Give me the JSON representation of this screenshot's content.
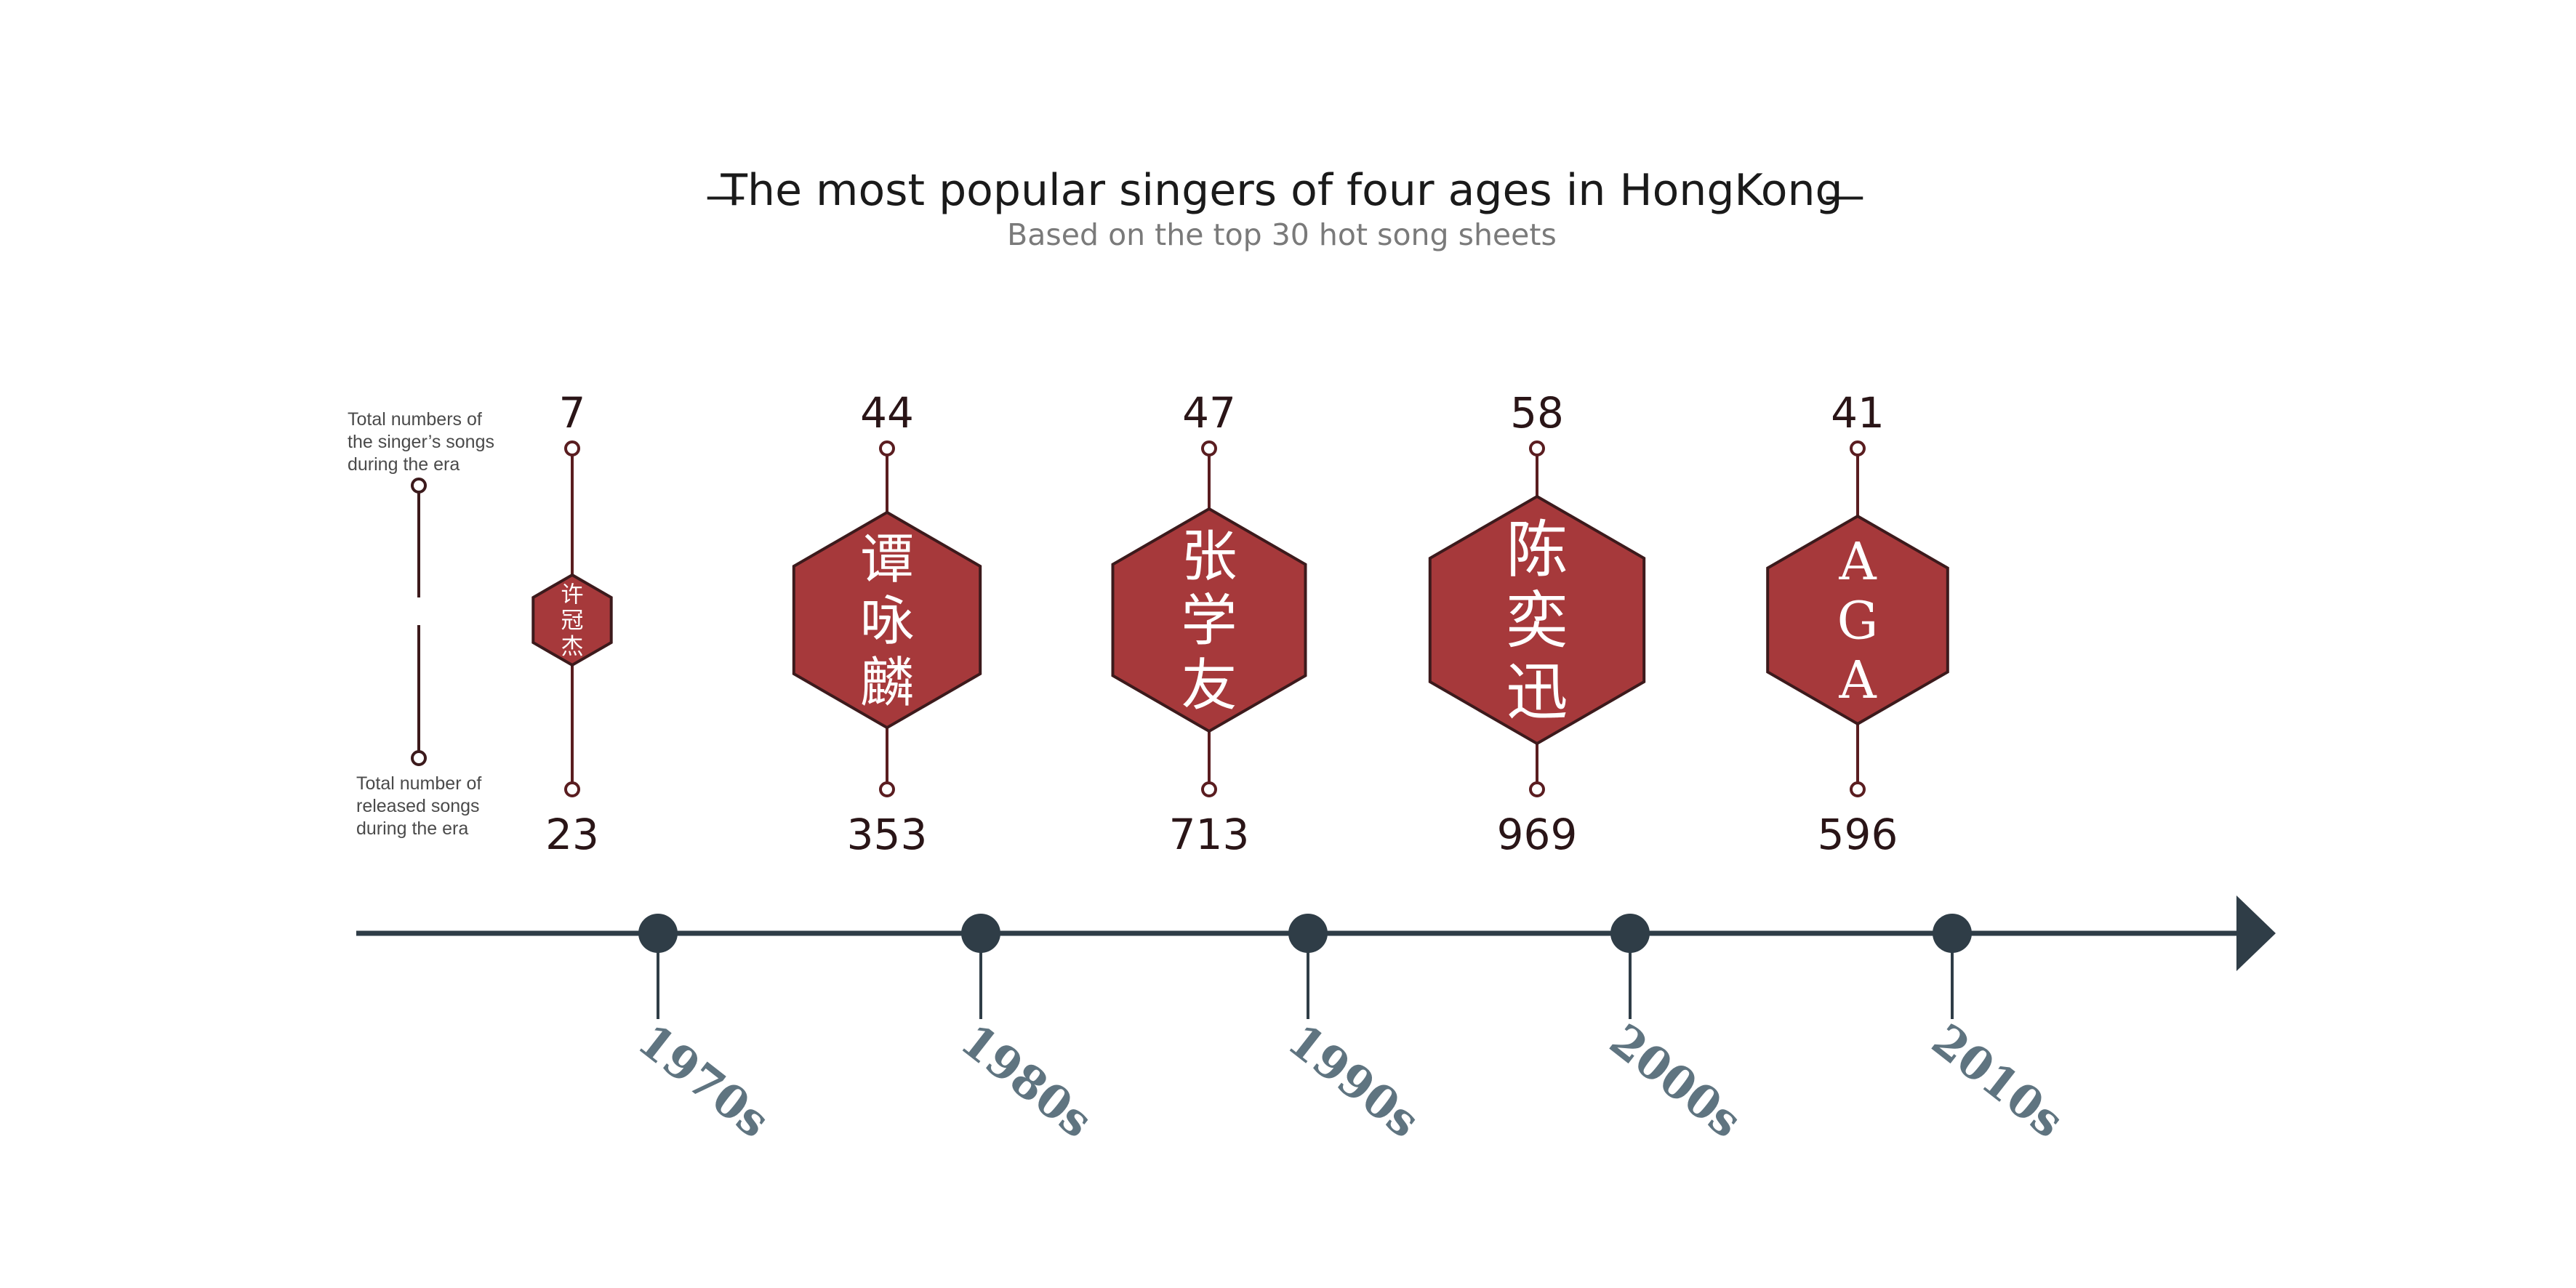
{
  "colors": {
    "accent": "#a6393b",
    "hex_stroke": "#3c1a1c",
    "stem": "#5a1d20",
    "axis": "#2f3d47",
    "decade_text": "#5f7480",
    "number_text": "#2a1517",
    "legend_text": "#4a4a4a",
    "title_text": "#1a1a1a",
    "subtitle_text": "#7a7a7a"
  },
  "header": {
    "title": "The most popular singers of four ages in HongKong",
    "dash_left": "—",
    "dash_right": "—",
    "subtitle": "Based on the top 30 hot song sheets"
  },
  "legend": {
    "top_lines": [
      "Total numbers of",
      "the singer’s songs",
      "during the era"
    ],
    "bottom_lines": [
      "Total number of",
      "released songs",
      "during the era"
    ]
  },
  "chart_data": {
    "type": "timeline",
    "title": "The most popular singers of four ages in HongKong",
    "subtitle": "Based on the top 30 hot song sheets",
    "series": [
      {
        "name": "Total numbers of the singer’s songs during the era",
        "values": [
          7,
          44,
          47,
          58,
          41
        ]
      },
      {
        "name": "Total number of released songs during the era",
        "values": [
          23,
          353,
          713,
          969,
          596
        ]
      }
    ],
    "categories": [
      "1970s",
      "1980s",
      "1990s",
      "2000s",
      "2010s"
    ],
    "points": [
      {
        "decade": "1970s",
        "singer": "许冠杰",
        "singer_chars": [
          "许",
          "冠",
          "杰"
        ],
        "singer_songs": 7,
        "total_released": 23
      },
      {
        "decade": "1980s",
        "singer": "谭咏麟",
        "singer_chars": [
          "谭",
          "咏",
          "麟"
        ],
        "singer_songs": 44,
        "total_released": 353
      },
      {
        "decade": "1990s",
        "singer": "张学友",
        "singer_chars": [
          "张",
          "学",
          "友"
        ],
        "singer_songs": 47,
        "total_released": 713
      },
      {
        "decade": "2000s",
        "singer": "陈奕迅",
        "singer_chars": [
          "陈",
          "奕",
          "迅"
        ],
        "singer_songs": 58,
        "total_released": 969
      },
      {
        "decade": "2010s",
        "singer": "AGA",
        "singer_chars": [
          "A",
          "G",
          "A"
        ],
        "singer_songs": 41,
        "total_released": 596
      }
    ]
  }
}
